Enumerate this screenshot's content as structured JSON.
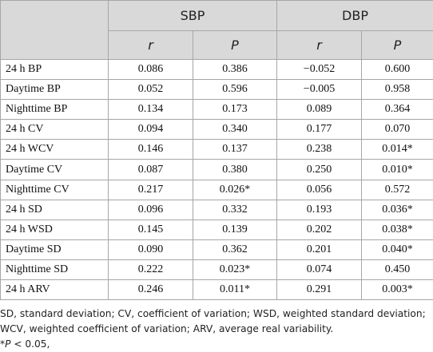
{
  "table": {
    "groups": [
      "SBP",
      "DBP"
    ],
    "subheaders": [
      "r",
      "P",
      "r",
      "P"
    ],
    "rows": [
      [
        "24 h BP",
        "0.086",
        "0.386",
        "−0.052",
        "0.600"
      ],
      [
        "Daytime BP",
        "0.052",
        "0.596",
        "−0.005",
        "0.958"
      ],
      [
        "Nighttime BP",
        "0.134",
        "0.173",
        "0.089",
        "0.364"
      ],
      [
        "24 h CV",
        "0.094",
        "0.340",
        "0.177",
        "0.070"
      ],
      [
        "24 h WCV",
        "0.146",
        "0.137",
        "0.238",
        "0.014*"
      ],
      [
        "Daytime CV",
        "0.087",
        "0.380",
        "0.250",
        "0.010*"
      ],
      [
        "Nighttime CV",
        "0.217",
        "0.026*",
        "0.056",
        "0.572"
      ],
      [
        "24 h SD",
        "0.096",
        "0.332",
        "0.193",
        "0.036*"
      ],
      [
        "24 h WSD",
        "0.145",
        "0.139",
        "0.202",
        "0.038*"
      ],
      [
        "Daytime SD",
        "0.090",
        "0.362",
        "0.201",
        "0.040*"
      ],
      [
        "Nighttime SD",
        "0.222",
        "0.023*",
        "0.074",
        "0.450"
      ],
      [
        "24 h ARV",
        "0.246",
        "0.011*",
        "0.291",
        "0.003*"
      ]
    ]
  },
  "footnote": {
    "abbreviations": "SD, standard deviation; CV, coefficient of variation; WSD, weighted standard deviation; WCV, weighted coefficient of variation; ARV, average real variability.",
    "significance": [
      "*",
      "P",
      " < 0.05,"
    ]
  }
}
